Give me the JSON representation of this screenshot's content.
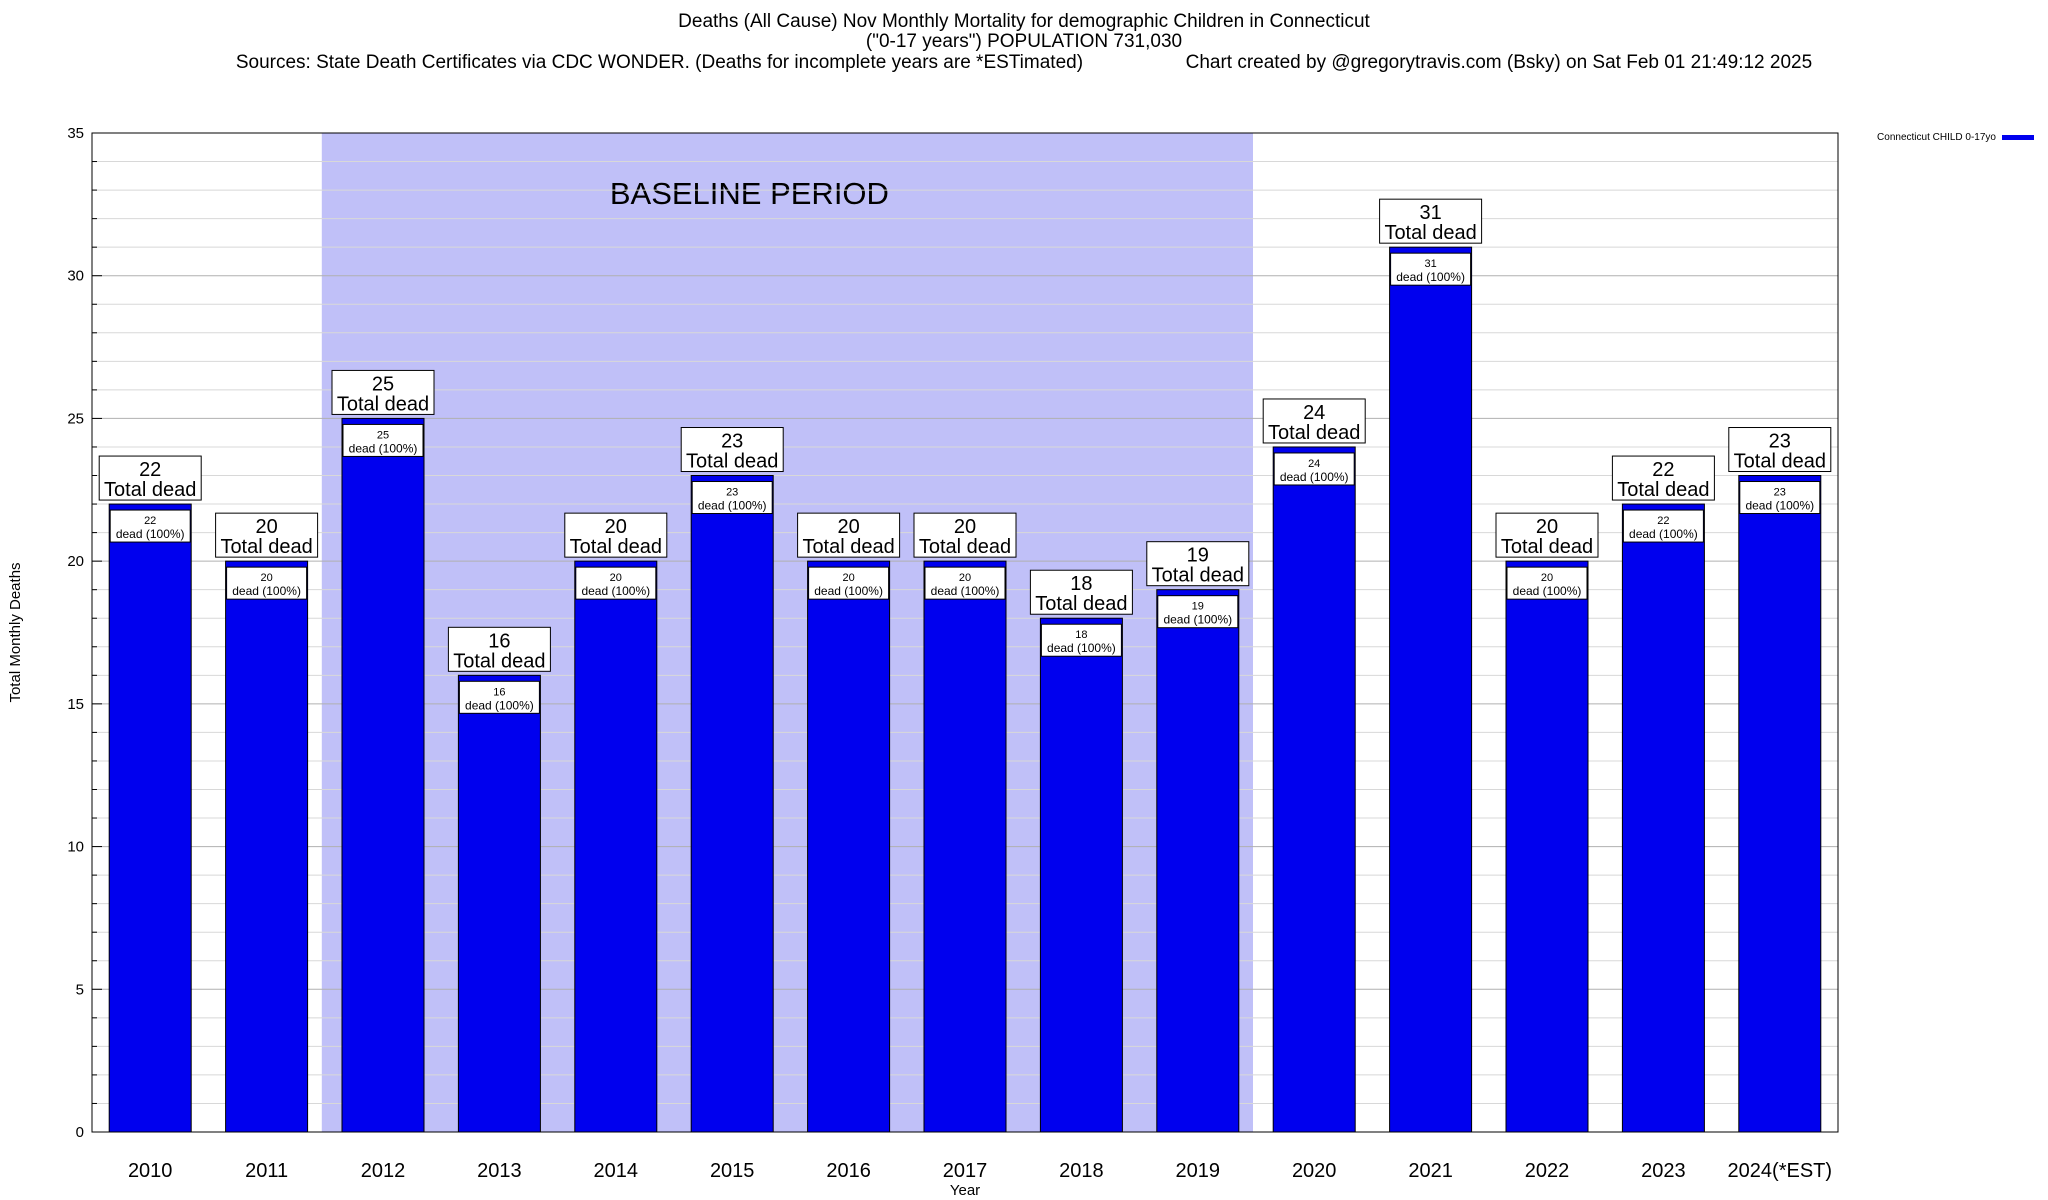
{
  "header": {
    "title": "Deaths (All Cause) Nov Monthly Mortality for demographic Children in Connecticut",
    "subtitle": "(\"0-17 years\") POPULATION 731,030",
    "sources": "Sources: State Death Certificates via CDC WONDER. (Deaths for incomplete years are *ESTimated)",
    "credit": "Chart created by @gregorytravis.com (Bsky) on Sat Feb 01 21:49:12 2025"
  },
  "chart_data": {
    "type": "bar",
    "categories": [
      "2010",
      "2011",
      "2012",
      "2013",
      "2014",
      "2015",
      "2016",
      "2017",
      "2018",
      "2019",
      "2020",
      "2021",
      "2022",
      "2023",
      "2024(*EST)"
    ],
    "series": [
      {
        "name": "Connecticut CHILD 0-17yo",
        "color": "#0000ee",
        "values": [
          22,
          20,
          25,
          16,
          20,
          23,
          20,
          20,
          18,
          19,
          24,
          31,
          20,
          22,
          23
        ]
      }
    ],
    "ylabel": "Total Monthly Deaths",
    "xlabel": "Year",
    "ylim": [
      0,
      35
    ],
    "yticks": [
      0,
      5,
      10,
      15,
      20,
      25,
      30,
      35
    ],
    "grid": true,
    "legend_position": "top-right",
    "baseline": {
      "label": "BASELINE PERIOD",
      "from": "2012",
      "to": "2019",
      "color": "#c0c0f8"
    },
    "top_label_suffix": "Total dead",
    "inner_label_suffix": "dead (100%)"
  }
}
